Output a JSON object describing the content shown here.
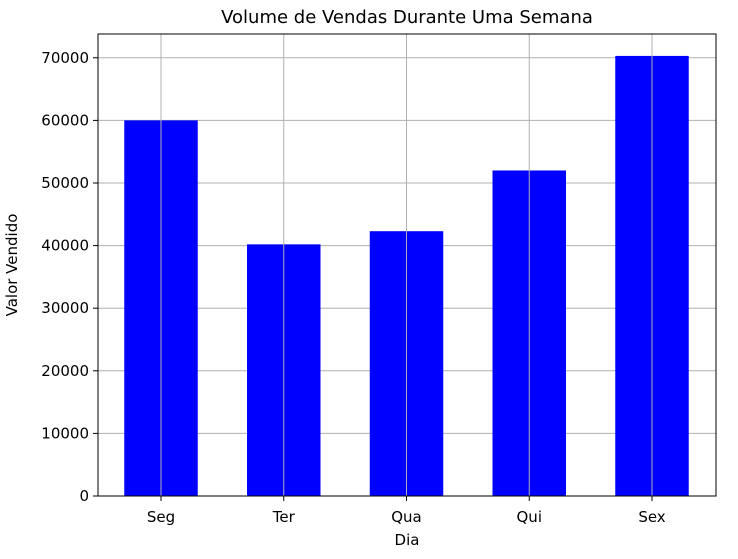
{
  "chart_data": {
    "type": "bar",
    "title": "Volume de Vendas Durante Uma Semana",
    "xlabel": "Dia",
    "ylabel": "Valor Vendido",
    "categories": [
      "Seg",
      "Ter",
      "Qua",
      "Qui",
      "Sex"
    ],
    "values": [
      60000,
      40200,
      42300,
      52000,
      70300
    ],
    "ylim": [
      0,
      73800
    ],
    "yticks": [
      0,
      10000,
      20000,
      30000,
      40000,
      50000,
      60000,
      70000
    ],
    "grid": true,
    "bar_color": "#0000ff",
    "grid_color": "#b0b0b0"
  }
}
